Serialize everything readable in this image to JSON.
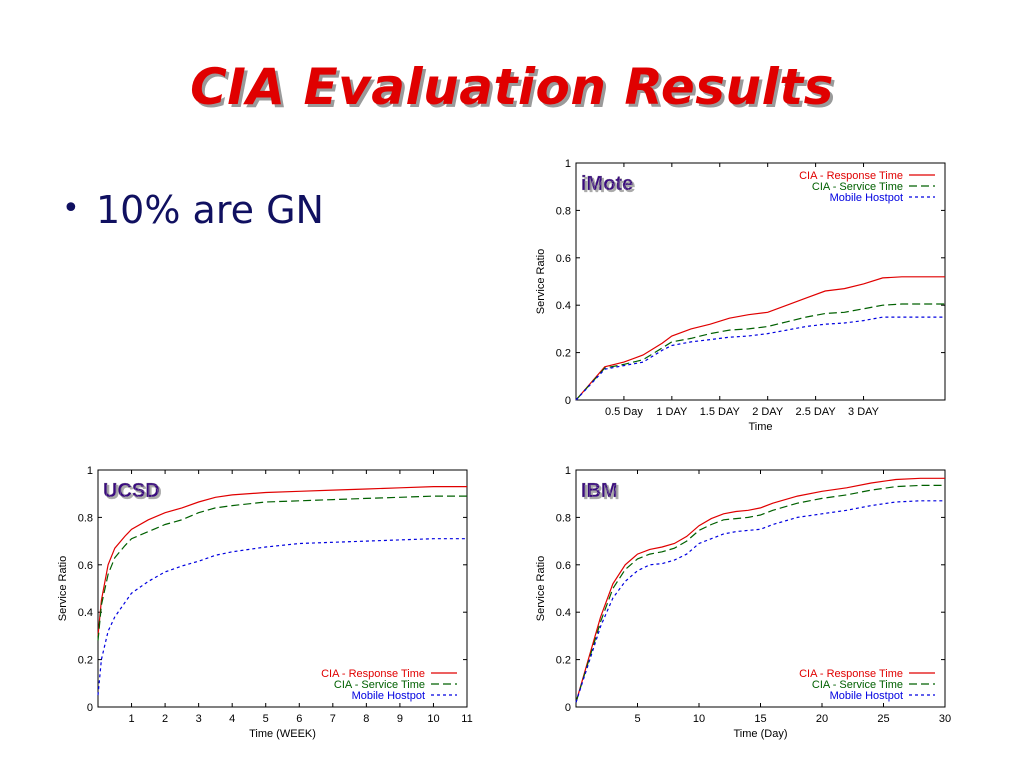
{
  "slide": {
    "title": "CIA Evaluation Results",
    "bullets": [
      "10% are GN"
    ]
  },
  "colors": {
    "title": "#e00000",
    "bullet_text": "#101060",
    "panel_label": "#3a0a80",
    "response_time": "#e00000",
    "service_time": "#006000",
    "mobile_hostpot": "#0000e0"
  },
  "chart_data": [
    {
      "type": "line",
      "panel_label": "iMote",
      "xlabel": "Time",
      "ylabel": "Service Ratio",
      "xlim": [
        0,
        3.85
      ],
      "ylim": [
        0,
        1
      ],
      "x_ticks": [
        {
          "value": 0.5,
          "label": "0.5 Day"
        },
        {
          "value": 1.0,
          "label": "1 DAY"
        },
        {
          "value": 1.5,
          "label": "1.5 DAY"
        },
        {
          "value": 2.0,
          "label": "2 DAY"
        },
        {
          "value": 2.5,
          "label": "2.5 DAY"
        },
        {
          "value": 3.0,
          "label": "3 DAY"
        }
      ],
      "y_ticks": [
        0,
        0.2,
        0.4,
        0.6,
        0.8,
        1
      ],
      "y_tick_labels": [
        "0",
        "0.2",
        "0.4",
        "0.6",
        "0.8",
        "1"
      ],
      "legend_position": "top-right",
      "series": [
        {
          "name": "CIA - Response Time",
          "color": "#e00000",
          "dash": "solid",
          "x": [
            0,
            0.3,
            0.5,
            0.7,
            0.9,
            1.0,
            1.2,
            1.4,
            1.6,
            1.8,
            2.0,
            2.2,
            2.4,
            2.6,
            2.8,
            3.0,
            3.2,
            3.4,
            3.6,
            3.85
          ],
          "y": [
            0,
            0.14,
            0.16,
            0.19,
            0.24,
            0.27,
            0.3,
            0.32,
            0.345,
            0.36,
            0.37,
            0.4,
            0.43,
            0.46,
            0.47,
            0.49,
            0.515,
            0.52,
            0.52,
            0.52
          ]
        },
        {
          "name": "CIA - Service Time",
          "color": "#006000",
          "dash": "longdash",
          "x": [
            0,
            0.3,
            0.5,
            0.7,
            0.9,
            1.0,
            1.2,
            1.4,
            1.6,
            1.8,
            2.0,
            2.2,
            2.4,
            2.6,
            2.8,
            3.0,
            3.2,
            3.4,
            3.6,
            3.85
          ],
          "y": [
            0,
            0.135,
            0.15,
            0.17,
            0.22,
            0.245,
            0.26,
            0.28,
            0.295,
            0.3,
            0.31,
            0.33,
            0.35,
            0.365,
            0.37,
            0.385,
            0.4,
            0.405,
            0.405,
            0.405
          ]
        },
        {
          "name": "Mobile Hostpot",
          "color": "#0000e0",
          "dash": "shortdash",
          "x": [
            0,
            0.3,
            0.5,
            0.7,
            0.9,
            1.0,
            1.2,
            1.4,
            1.6,
            1.8,
            2.0,
            2.2,
            2.4,
            2.6,
            2.8,
            3.0,
            3.2,
            3.4,
            3.6,
            3.85
          ],
          "y": [
            0,
            0.13,
            0.145,
            0.16,
            0.21,
            0.23,
            0.245,
            0.255,
            0.265,
            0.27,
            0.28,
            0.295,
            0.31,
            0.32,
            0.325,
            0.335,
            0.35,
            0.35,
            0.35,
            0.35
          ]
        }
      ]
    },
    {
      "type": "line",
      "panel_label": "UCSD",
      "xlabel": "Time (WEEK)",
      "ylabel": "Service Ratio",
      "xlim": [
        0,
        11
      ],
      "ylim": [
        0,
        1
      ],
      "x_ticks": [
        {
          "value": 1,
          "label": "1"
        },
        {
          "value": 2,
          "label": "2"
        },
        {
          "value": 3,
          "label": "3"
        },
        {
          "value": 4,
          "label": "4"
        },
        {
          "value": 5,
          "label": "5"
        },
        {
          "value": 6,
          "label": "6"
        },
        {
          "value": 7,
          "label": "7"
        },
        {
          "value": 8,
          "label": "8"
        },
        {
          "value": 9,
          "label": "9"
        },
        {
          "value": 10,
          "label": "10"
        },
        {
          "value": 11,
          "label": "11"
        }
      ],
      "y_ticks": [
        0,
        0.2,
        0.4,
        0.6,
        0.8,
        1
      ],
      "y_tick_labels": [
        "0",
        "0.2",
        "0.4",
        "0.6",
        "0.8",
        "1"
      ],
      "legend_position": "bottom-right",
      "series": [
        {
          "name": "CIA - Response Time",
          "color": "#e00000",
          "dash": "solid",
          "x": [
            0,
            0.1,
            0.3,
            0.5,
            0.8,
            1,
            1.5,
            2,
            2.5,
            3,
            3.5,
            4,
            5,
            6,
            7,
            8,
            9,
            10,
            11
          ],
          "y": [
            0.3,
            0.45,
            0.6,
            0.67,
            0.72,
            0.75,
            0.79,
            0.82,
            0.84,
            0.865,
            0.885,
            0.895,
            0.905,
            0.91,
            0.915,
            0.92,
            0.925,
            0.93,
            0.93
          ]
        },
        {
          "name": "CIA - Service Time",
          "color": "#006000",
          "dash": "longdash",
          "x": [
            0,
            0.1,
            0.3,
            0.5,
            0.8,
            1,
            1.5,
            2,
            2.5,
            3,
            3.5,
            4,
            5,
            6,
            7,
            8,
            9,
            10,
            11
          ],
          "y": [
            0.28,
            0.43,
            0.56,
            0.63,
            0.68,
            0.71,
            0.74,
            0.77,
            0.79,
            0.82,
            0.84,
            0.85,
            0.865,
            0.87,
            0.875,
            0.88,
            0.885,
            0.89,
            0.89
          ]
        },
        {
          "name": "Mobile Hostpot",
          "color": "#0000e0",
          "dash": "shortdash",
          "x": [
            0,
            0.1,
            0.3,
            0.5,
            0.8,
            1,
            1.5,
            2,
            2.5,
            3,
            3.5,
            4,
            5,
            6,
            7,
            8,
            9,
            10,
            11
          ],
          "y": [
            0.05,
            0.2,
            0.32,
            0.38,
            0.44,
            0.48,
            0.53,
            0.57,
            0.595,
            0.615,
            0.64,
            0.655,
            0.675,
            0.69,
            0.695,
            0.7,
            0.705,
            0.71,
            0.71
          ]
        }
      ]
    },
    {
      "type": "line",
      "panel_label": "IBM",
      "xlabel": "Time (Day)",
      "ylabel": "Service Ratio",
      "xlim": [
        0,
        30
      ],
      "ylim": [
        0,
        1
      ],
      "x_ticks": [
        {
          "value": 5,
          "label": "5"
        },
        {
          "value": 10,
          "label": "10"
        },
        {
          "value": 15,
          "label": "15"
        },
        {
          "value": 20,
          "label": "20"
        },
        {
          "value": 25,
          "label": "25"
        },
        {
          "value": 30,
          "label": "30"
        }
      ],
      "y_ticks": [
        0,
        0.2,
        0.4,
        0.6,
        0.8,
        1
      ],
      "y_tick_labels": [
        "0",
        "0.2",
        "0.4",
        "0.6",
        "0.8",
        "1"
      ],
      "legend_position": "bottom-right",
      "series": [
        {
          "name": "CIA - Response Time",
          "color": "#e00000",
          "dash": "solid",
          "x": [
            0,
            1,
            2,
            3,
            4,
            5,
            6,
            7,
            8,
            9,
            10,
            11,
            12,
            13,
            14,
            15,
            16,
            18,
            20,
            22,
            24,
            26,
            28,
            30
          ],
          "y": [
            0.02,
            0.2,
            0.38,
            0.52,
            0.6,
            0.645,
            0.665,
            0.675,
            0.69,
            0.72,
            0.765,
            0.795,
            0.815,
            0.825,
            0.83,
            0.84,
            0.86,
            0.89,
            0.91,
            0.925,
            0.945,
            0.96,
            0.965,
            0.965
          ]
        },
        {
          "name": "CIA - Service Time",
          "color": "#006000",
          "dash": "longdash",
          "x": [
            0,
            1,
            2,
            3,
            4,
            5,
            6,
            7,
            8,
            9,
            10,
            11,
            12,
            13,
            14,
            15,
            16,
            18,
            20,
            22,
            24,
            26,
            28,
            30
          ],
          "y": [
            0.02,
            0.19,
            0.36,
            0.5,
            0.58,
            0.625,
            0.645,
            0.655,
            0.67,
            0.7,
            0.745,
            0.77,
            0.79,
            0.795,
            0.8,
            0.81,
            0.83,
            0.86,
            0.88,
            0.895,
            0.915,
            0.93,
            0.935,
            0.935
          ]
        },
        {
          "name": "Mobile Hostpot",
          "color": "#0000e0",
          "dash": "shortdash",
          "x": [
            0,
            1,
            2,
            3,
            4,
            5,
            6,
            7,
            8,
            9,
            10,
            11,
            12,
            13,
            14,
            15,
            16,
            18,
            20,
            22,
            24,
            26,
            28,
            30
          ],
          "y": [
            0.02,
            0.18,
            0.34,
            0.46,
            0.53,
            0.575,
            0.6,
            0.605,
            0.62,
            0.645,
            0.69,
            0.71,
            0.73,
            0.74,
            0.745,
            0.75,
            0.77,
            0.8,
            0.815,
            0.83,
            0.85,
            0.865,
            0.87,
            0.87
          ]
        }
      ]
    }
  ]
}
